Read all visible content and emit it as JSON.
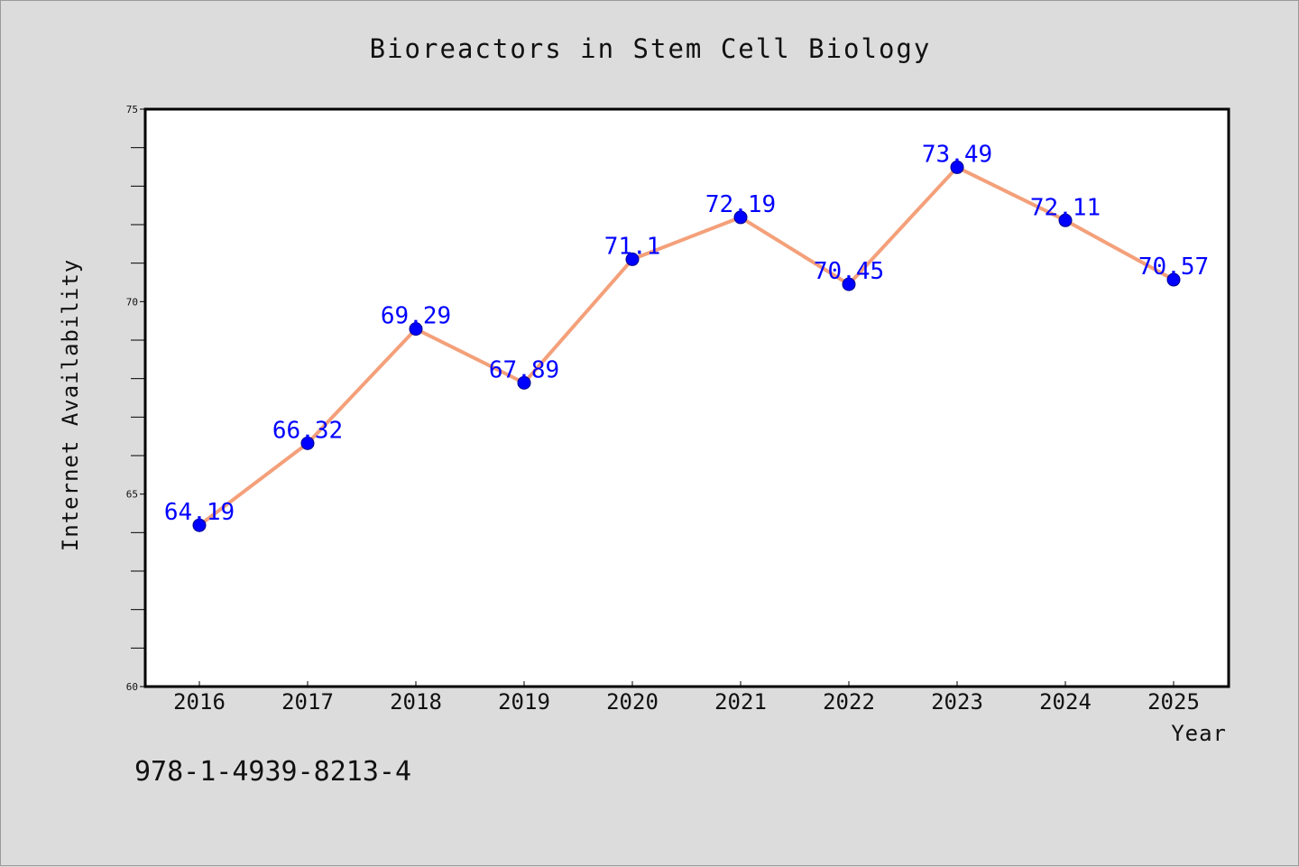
{
  "chart_data": {
    "type": "line",
    "title": "Bioreactors in Stem Cell Biology",
    "xlabel": "Year",
    "ylabel": "Internet Availability",
    "categories": [
      "2016",
      "2017",
      "2018",
      "2019",
      "2020",
      "2021",
      "2022",
      "2023",
      "2024",
      "2025"
    ],
    "series": [
      {
        "values": [
          64.19,
          66.32,
          69.29,
          67.89,
          71.1,
          72.19,
          70.45,
          73.49,
          72.11,
          70.57
        ],
        "labels": [
          "64.19",
          "66.32",
          "69.29",
          "67.89",
          "71.1",
          "72.19",
          "70.45",
          "73.49",
          "72.11",
          "70.57"
        ],
        "line_color": "#f4a07a",
        "marker_color": "#0000ff"
      }
    ],
    "ylim": [
      60,
      75
    ],
    "yticks": [
      "60",
      "65",
      "70",
      "75"
    ],
    "grid": false,
    "legend": "none"
  },
  "footer": {
    "code": "978-1-4939-8213-4"
  },
  "colors": {
    "background": "#dcdcdc",
    "plot_background": "#ffffff",
    "text": "#111111",
    "data_label": "#0000ff"
  }
}
